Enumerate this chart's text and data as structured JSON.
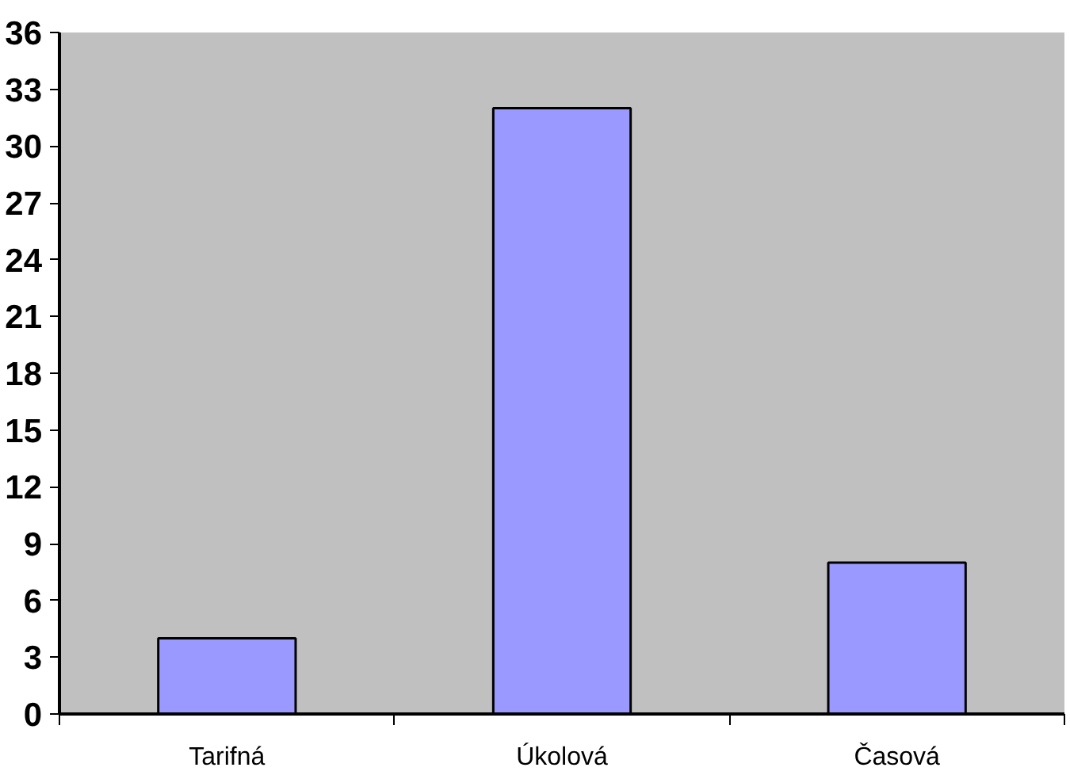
{
  "chart_data": {
    "type": "bar",
    "categories": [
      "Tarifná",
      "Úkolová",
      "Časová"
    ],
    "values": [
      4,
      32,
      8
    ],
    "color": "#9999ff",
    "ylim": [
      0,
      36
    ],
    "yticks": [
      0,
      3,
      6,
      9,
      12,
      15,
      18,
      21,
      24,
      27,
      30,
      33,
      36
    ]
  }
}
